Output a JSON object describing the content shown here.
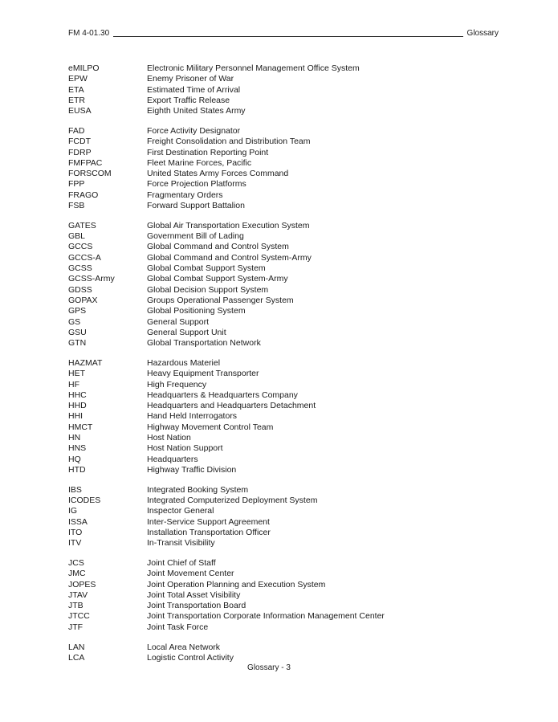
{
  "header": {
    "doc_id": "FM 4-01.30",
    "section_label": "Glossary"
  },
  "footer": {
    "page_label": "Glossary - 3"
  },
  "glossary": {
    "groups": [
      {
        "entries": [
          {
            "abbr": "eMILPO",
            "definition": "Electronic Military Personnel Management Office System"
          },
          {
            "abbr": "EPW",
            "definition": "Enemy Prisoner of War"
          },
          {
            "abbr": "ETA",
            "definition": "Estimated Time of Arrival"
          },
          {
            "abbr": "ETR",
            "definition": "Export Traffic Release"
          },
          {
            "abbr": "EUSA",
            "definition": "Eighth United States Army"
          }
        ]
      },
      {
        "entries": [
          {
            "abbr": "FAD",
            "definition": "Force Activity Designator"
          },
          {
            "abbr": "FCDT",
            "definition": "Freight Consolidation and Distribution Team"
          },
          {
            "abbr": "FDRP",
            "definition": "First Destination Reporting Point"
          },
          {
            "abbr": "FMFPAC",
            "definition": "Fleet Marine Forces, Pacific"
          },
          {
            "abbr": "FORSCOM",
            "definition": "United States Army Forces Command"
          },
          {
            "abbr": "FPP",
            "definition": "Force Projection Platforms"
          },
          {
            "abbr": "FRAGO",
            "definition": "Fragmentary Orders"
          },
          {
            "abbr": "FSB",
            "definition": "Forward Support Battalion"
          }
        ]
      },
      {
        "entries": [
          {
            "abbr": "GATES",
            "definition": "Global Air Transportation Execution System"
          },
          {
            "abbr": "GBL",
            "definition": "Government Bill of Lading"
          },
          {
            "abbr": "GCCS",
            "definition": "Global Command and Control System"
          },
          {
            "abbr": "GCCS-A",
            "definition": "Global Command and Control System-Army"
          },
          {
            "abbr": "GCSS",
            "definition": "Global Combat Support System"
          },
          {
            "abbr": "GCSS-Army",
            "definition": "Global Combat Support System-Army"
          },
          {
            "abbr": "GDSS",
            "definition": "Global Decision Support System"
          },
          {
            "abbr": "GOPAX",
            "definition": "Groups Operational Passenger System"
          },
          {
            "abbr": "GPS",
            "definition": "Global Positioning System"
          },
          {
            "abbr": "GS",
            "definition": "General Support"
          },
          {
            "abbr": "GSU",
            "definition": "General Support Unit"
          },
          {
            "abbr": "GTN",
            "definition": "Global Transportation Network"
          }
        ]
      },
      {
        "entries": [
          {
            "abbr": "HAZMAT",
            "definition": "Hazardous Materiel"
          },
          {
            "abbr": "HET",
            "definition": "Heavy Equipment Transporter"
          },
          {
            "abbr": "HF",
            "definition": "High Frequency"
          },
          {
            "abbr": "HHC",
            "definition": "Headquarters & Headquarters Company"
          },
          {
            "abbr": "HHD",
            "definition": "Headquarters and Headquarters Detachment"
          },
          {
            "abbr": "HHI",
            "definition": "Hand Held Interrogators"
          },
          {
            "abbr": "HMCT",
            "definition": "Highway Movement Control Team"
          },
          {
            "abbr": "HN",
            "definition": "Host Nation"
          },
          {
            "abbr": "HNS",
            "definition": "Host Nation Support"
          },
          {
            "abbr": "HQ",
            "definition": "Headquarters"
          },
          {
            "abbr": "HTD",
            "definition": "Highway Traffic Division"
          }
        ]
      },
      {
        "entries": [
          {
            "abbr": "IBS",
            "definition": "Integrated Booking System"
          },
          {
            "abbr": "ICODES",
            "definition": "Integrated Computerized Deployment System"
          },
          {
            "abbr": "IG",
            "definition": "Inspector General"
          },
          {
            "abbr": "ISSA",
            "definition": "Inter-Service Support Agreement"
          },
          {
            "abbr": "ITO",
            "definition": "Installation Transportation Officer"
          },
          {
            "abbr": "ITV",
            "definition": "In-Transit Visibility"
          }
        ]
      },
      {
        "entries": [
          {
            "abbr": "JCS",
            "definition": "Joint Chief of Staff"
          },
          {
            "abbr": "JMC",
            "definition": "Joint Movement Center"
          },
          {
            "abbr": "JOPES",
            "definition": "Joint Operation Planning and Execution System"
          },
          {
            "abbr": "JTAV",
            "definition": "Joint Total Asset Visibility"
          },
          {
            "abbr": "JTB",
            "definition": "Joint Transportation Board"
          },
          {
            "abbr": "JTCC",
            "definition": "Joint Transportation Corporate Information Management Center"
          },
          {
            "abbr": "JTF",
            "definition": "Joint Task Force"
          }
        ]
      },
      {
        "entries": [
          {
            "abbr": "LAN",
            "definition": "Local Area Network"
          },
          {
            "abbr": "LCA",
            "definition": "Logistic Control Activity"
          }
        ]
      }
    ]
  }
}
